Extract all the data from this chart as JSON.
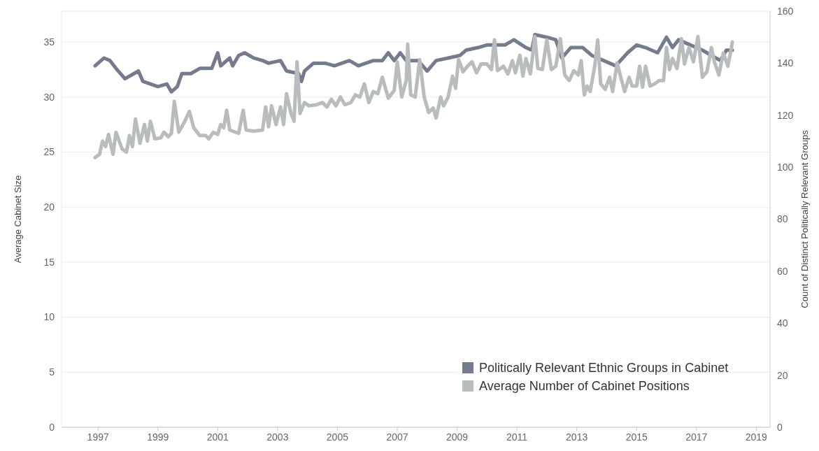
{
  "chart_data": {
    "type": "line",
    "ylabel": "Average Cabinet Size",
    "y2label": "Count of Distinct Politically Relevant Groups",
    "xlim": [
      1995.78,
      2019.46
    ],
    "xticks": [
      1997,
      1999,
      2001,
      2003,
      2005,
      2007,
      2009,
      2011,
      2013,
      2015,
      2017,
      2019
    ],
    "ylim": [
      0,
      37.8
    ],
    "yticks": [
      0,
      5,
      10,
      15,
      20,
      25,
      30,
      35
    ],
    "y2lim": [
      0,
      160
    ],
    "y2ticks": [
      0,
      20,
      40,
      60,
      80,
      100,
      120,
      140,
      160
    ],
    "grid": "y",
    "legend": "bottom right",
    "line_style": "solid",
    "marker": "none",
    "series": [
      {
        "name": "Politically Relevant Ethnic Groups in Cabinet",
        "color": "#737b8c",
        "axis": "y2",
        "x": [
          1996.9,
          1997.2,
          1997.4,
          1997.6,
          1997.9,
          1998.2,
          1998.35,
          1998.5,
          1999.0,
          1999.3,
          1999.45,
          1999.65,
          1999.8,
          2000.1,
          2000.4,
          2000.8,
          2001.0,
          2001.1,
          2001.4,
          2001.5,
          2001.7,
          2001.9,
          2002.2,
          2002.5,
          2002.7,
          2003.1,
          2003.3,
          2003.7,
          2003.8,
          2003.9,
          2004.2,
          2004.6,
          2004.9,
          2005.4,
          2005.7,
          2006.2,
          2006.5,
          2006.7,
          2006.9,
          2007.1,
          2007.3,
          2007.7,
          2008.0,
          2008.3,
          2008.7,
          2009.1,
          2009.3,
          2009.7,
          2010.0,
          2010.6,
          2010.9,
          2011.3,
          2011.5,
          2011.6,
          2012.0,
          2012.3,
          2012.5,
          2012.8,
          2013.2,
          2013.5,
          2013.9,
          2014.1,
          2014.3,
          2014.7,
          2015.0,
          2015.3,
          2015.7,
          2016.0,
          2016.2,
          2016.4,
          2016.8,
          2017.2,
          2017.5,
          2017.8,
          2018.0,
          2018.2
        ],
        "values": [
          139,
          142,
          141,
          138,
          134,
          136,
          137,
          133,
          131,
          132,
          129,
          131,
          136,
          136,
          138,
          138,
          144,
          139,
          142,
          139,
          143,
          144,
          142,
          141,
          140,
          141,
          137,
          136,
          133,
          137,
          140,
          140,
          139,
          141,
          139,
          141,
          141,
          144,
          141,
          144,
          141,
          141,
          137,
          141,
          142,
          143,
          145,
          146,
          147,
          147,
          149,
          146,
          145,
          151,
          150,
          149,
          142,
          146,
          146,
          143,
          141,
          140,
          139,
          144,
          147,
          146,
          144,
          150,
          146,
          149,
          147,
          145,
          143,
          141,
          145,
          145
        ]
      },
      {
        "name": "Average Number of Cabinet Positions",
        "color": "#b8bcbd",
        "x": [
          1996.9,
          1997.05,
          1997.15,
          1997.25,
          1997.35,
          1997.5,
          1997.6,
          1997.8,
          1997.95,
          1998.05,
          1998.15,
          1998.25,
          1998.4,
          1998.55,
          1998.65,
          1998.75,
          1998.9,
          1999.1,
          1999.2,
          1999.35,
          1999.45,
          1999.55,
          1999.7,
          1999.9,
          2000.05,
          2000.2,
          2000.4,
          2000.6,
          2000.7,
          2000.85,
          2001.0,
          2001.1,
          2001.2,
          2001.3,
          2001.4,
          2001.7,
          2001.85,
          2001.95,
          2002.2,
          2002.5,
          2002.6,
          2002.7,
          2002.8,
          2002.95,
          2003.1,
          2003.2,
          2003.3,
          2003.45,
          2003.55,
          2003.65,
          2003.75,
          2003.9,
          2004.05,
          2004.3,
          2004.5,
          2004.65,
          2004.8,
          2004.95,
          2005.1,
          2005.25,
          2005.45,
          2005.6,
          2005.75,
          2005.9,
          2006.05,
          2006.2,
          2006.35,
          2006.5,
          2006.7,
          2006.9,
          2007.0,
          2007.15,
          2007.3,
          2007.35,
          2007.45,
          2007.6,
          2007.75,
          2007.9,
          2008.05,
          2008.2,
          2008.3,
          2008.45,
          2008.55,
          2008.7,
          2008.85,
          2008.95,
          2009.05,
          2009.2,
          2009.35,
          2009.5,
          2009.65,
          2009.8,
          2010.0,
          2010.15,
          2010.25,
          2010.35,
          2010.55,
          2010.7,
          2010.85,
          2010.95,
          2011.1,
          2011.2,
          2011.3,
          2011.45,
          2011.6,
          2011.7,
          2011.85,
          2012.0,
          2012.15,
          2012.3,
          2012.45,
          2012.6,
          2012.75,
          2012.9,
          2013.05,
          2013.15,
          2013.25,
          2013.35,
          2013.45,
          2013.6,
          2013.7,
          2013.8,
          2013.95,
          2014.1,
          2014.2,
          2014.35,
          2014.5,
          2014.6,
          2014.75,
          2014.85,
          2015.0,
          2015.1,
          2015.2,
          2015.3,
          2015.45,
          2015.6,
          2015.75,
          2015.9,
          2016.0,
          2016.1,
          2016.2,
          2016.35,
          2016.5,
          2016.6,
          2016.75,
          2016.9,
          2017.05,
          2017.2,
          2017.35,
          2017.5,
          2017.6,
          2017.75,
          2017.9,
          2018.05,
          2018.15,
          2018.2
        ],
        "values": [
          24.5,
          24.8,
          26,
          25.5,
          26.6,
          24.8,
          26.8,
          25.3,
          25,
          26.5,
          25.5,
          28,
          25.8,
          27.5,
          26,
          27.8,
          26.2,
          26.3,
          26.8,
          26.4,
          26.7,
          29.6,
          26.8,
          27.8,
          28.7,
          27.2,
          26.5,
          26.5,
          26.2,
          26.8,
          26.6,
          27.5,
          27.2,
          28.8,
          27,
          26.7,
          28.8,
          27,
          26.9,
          27,
          29.1,
          27.3,
          29.2,
          27.5,
          29.1,
          27.5,
          30.3,
          28.5,
          27.8,
          33.2,
          28.5,
          29.5,
          29.2,
          29.3,
          29.5,
          29.1,
          29.8,
          29.2,
          30,
          29.3,
          29.5,
          30.2,
          30,
          31.2,
          29.5,
          30.5,
          30.3,
          31.8,
          29.9,
          30.6,
          33.2,
          30,
          31.5,
          34.8,
          30.2,
          30,
          33.4,
          30,
          28.6,
          29,
          28.1,
          30,
          29.2,
          30,
          31.9,
          30.8,
          33.4,
          32.3,
          32.8,
          33.2,
          32.2,
          33,
          33,
          32.5,
          35.2,
          32.4,
          32.8,
          32.1,
          33.3,
          32.2,
          33.8,
          31.9,
          33.5,
          32.1,
          35.5,
          32.6,
          32.5,
          35.2,
          32.5,
          32.8,
          35.3,
          32,
          31.5,
          32.4,
          32,
          33.3,
          30.2,
          31,
          30.5,
          32.8,
          35.2,
          31.2,
          30.7,
          31.8,
          30.5,
          33.1,
          31.5,
          30.5,
          31.8,
          31,
          31,
          32.8,
          30.9,
          32.8,
          31,
          31.2,
          31.5,
          31.5,
          34.5,
          32.5,
          33.5,
          32.6,
          35.3,
          33,
          34.5,
          33.2,
          35.5,
          31.8,
          32.3,
          34.5,
          33.2,
          32,
          34,
          32.8,
          34.2,
          35
        ]
      }
    ]
  }
}
